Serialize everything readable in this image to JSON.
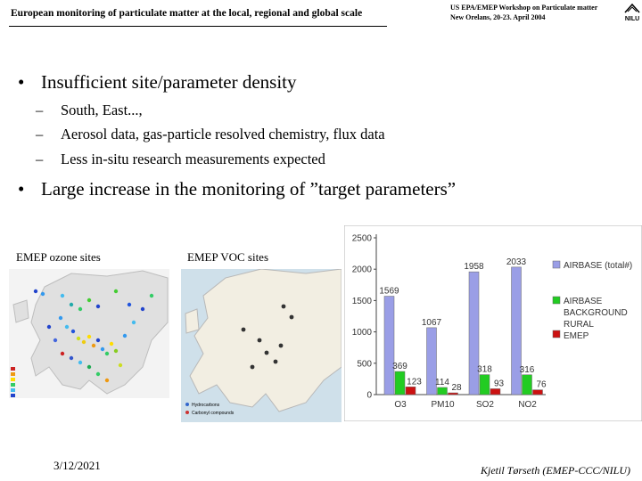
{
  "header": {
    "title": "European monitoring of particulate matter at the local, regional and global scale",
    "workshop_line1": "US EPA/EMEP Workshop on Particulate matter",
    "workshop_line2": "New Orelans, 20-23. April 2004",
    "logo_text": "NILU"
  },
  "bullets": [
    {
      "text": "Insufficient site/parameter density",
      "subs": [
        "South, East...,",
        "Aerosol data, gas-particle resolved chemistry, flux data",
        "Less in-situ research measurements expected"
      ]
    },
    {
      "text": "Large increase in the monitoring of ”target parameters”"
    }
  ],
  "bullet_symbol": "•",
  "dash_symbol": "–",
  "captions": {
    "ozone": "EMEP ozone sites",
    "voc": "EMEP VOC sites"
  },
  "voc_legend": [
    "Hydrocarbons",
    "Carbonyl compounds"
  ],
  "chart_data": {
    "type": "bar",
    "categories": [
      "O3",
      "PM10",
      "SO2",
      "NO2"
    ],
    "series": [
      {
        "name": "AIRBASE (total#)",
        "values": [
          1569,
          1067,
          1958,
          2033
        ],
        "color": "#9a9ee6"
      },
      {
        "name": "AIRBASE BACKGROUND RURAL",
        "values": [
          369,
          114,
          318,
          316
        ],
        "color": "#22cc22"
      },
      {
        "name": "EMEP",
        "values": [
          123,
          28,
          93,
          76
        ],
        "color": "#cc1111"
      }
    ],
    "ylim": [
      0,
      2500
    ],
    "yticks": [
      "0",
      "500",
      "1000",
      "1500",
      "2000",
      "2500"
    ],
    "legend_labels": [
      "AIRBASE (total#)",
      "AIRBASE",
      "BACKGROUND",
      "RURAL",
      "EMEP"
    ],
    "legend_position": "right",
    "grid": false
  },
  "footer": {
    "date": "3/12/2021",
    "author": "Kjetil Tørseth (EMEP-CCC/NILU)"
  }
}
